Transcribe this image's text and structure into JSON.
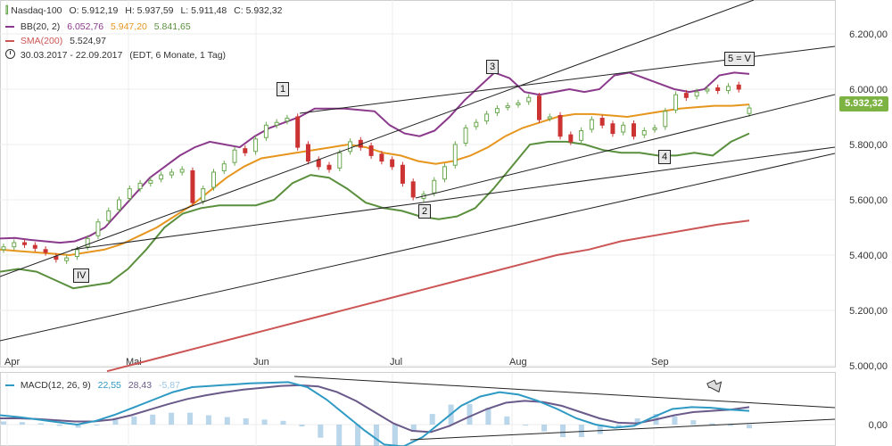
{
  "legend": {
    "nasdaq": {
      "name": "Nasdaq-100",
      "o": "O: 5.912,19",
      "h": "H: 5.937,59",
      "l": "L: 5.911,48",
      "c": "C: 5.932,32"
    },
    "bb": {
      "name": "BB(20, 2)",
      "upper": "6.052,76",
      "middle": "5.947,20",
      "lower": "5.841,65"
    },
    "sma": {
      "name": "SMA(200)",
      "value": "5.524,97"
    },
    "period": {
      "range": "30.03.2017 - 22.09.2017",
      "info": "(EDT, 6 Monate, 1 Tag)"
    },
    "macd": {
      "name": "MACD(12, 26, 9)",
      "macd": "22,55",
      "signal": "28,43",
      "hist": "-5,87"
    }
  },
  "price_badge": "5.932,32",
  "waves": [
    "1",
    "2",
    "3",
    "4",
    "5 = V",
    "IV"
  ],
  "colors": {
    "up": "#6aa84f",
    "down": "#cc3333",
    "bb_band": "#8b3a8b",
    "bb_mid": "#e6961e",
    "bb_low": "#5a8f3e",
    "sma": "#cc5555",
    "macd": "#2e9ac4",
    "signal": "#6a5a8a",
    "hist": "#9bc4e2",
    "badge": "#7cb342"
  },
  "chart_data": [
    {
      "type": "line",
      "title": "Nasdaq-100",
      "x_labels": [
        "Apr",
        "Mai",
        "Jun",
        "Jul",
        "Aug",
        "Sep"
      ],
      "y_ticks": [
        "6.200,00",
        "6.000,00",
        "5.800,00",
        "5.600,00",
        "5.400,00",
        "5.200,00",
        "5.000,00"
      ],
      "ylim": [
        5000,
        6250
      ],
      "grid": true,
      "series": [
        {
          "name": "Nasdaq-100",
          "style": "candles",
          "x": [
            "03.04",
            "05.04",
            "07.04",
            "10.04",
            "12.04",
            "17.04",
            "19.04",
            "21.04",
            "24.04",
            "26.04",
            "28.04",
            "01.05",
            "03.05",
            "05.05",
            "08.05",
            "10.05",
            "12.05",
            "15.05",
            "17.05",
            "19.05",
            "22.05",
            "24.05",
            "26.05",
            "30.05",
            "01.06",
            "05.06",
            "07.06",
            "09.06",
            "12.06",
            "14.06",
            "16.06",
            "19.06",
            "21.06",
            "23.06",
            "26.06",
            "28.06",
            "30.06",
            "03.07",
            "05.07",
            "07.07",
            "10.07",
            "12.07",
            "14.07",
            "17.07",
            "19.07",
            "21.07",
            "24.07",
            "26.07",
            "28.07",
            "31.07",
            "02.08",
            "04.08",
            "07.08",
            "09.08",
            "11.08",
            "14.08",
            "16.08",
            "18.08",
            "21.08",
            "23.08",
            "25.08",
            "28.08",
            "30.08",
            "01.09",
            "05.09",
            "07.09",
            "11.09",
            "13.09",
            "15.09",
            "18.09",
            "20.09",
            "22.09"
          ],
          "close": [
            5430,
            5445,
            5438,
            5425,
            5410,
            5385,
            5390,
            5420,
            5460,
            5520,
            5560,
            5600,
            5640,
            5660,
            5670,
            5690,
            5700,
            5710,
            5590,
            5640,
            5700,
            5730,
            5780,
            5770,
            5820,
            5870,
            5880,
            5895,
            5790,
            5740,
            5720,
            5710,
            5770,
            5810,
            5790,
            5760,
            5740,
            5720,
            5660,
            5610,
            5620,
            5670,
            5720,
            5800,
            5860,
            5880,
            5910,
            5930,
            5940,
            5950,
            5970,
            5890,
            5900,
            5830,
            5810,
            5850,
            5890,
            5870,
            5840,
            5870,
            5830,
            5850,
            5860,
            5920,
            5980,
            5970,
            5990,
            6000,
            5995,
            6010,
            6000,
            5932
          ],
          "open": [
            5420,
            5430,
            5445,
            5435,
            5420,
            5395,
            5380,
            5395,
            5430,
            5470,
            5525,
            5565,
            5605,
            5640,
            5660,
            5675,
            5690,
            5700,
            5705,
            5595,
            5645,
            5705,
            5735,
            5785,
            5775,
            5825,
            5870,
            5885,
            5900,
            5800,
            5745,
            5725,
            5715,
            5775,
            5815,
            5795,
            5765,
            5745,
            5725,
            5665,
            5605,
            5625,
            5675,
            5725,
            5805,
            5865,
            5885,
            5915,
            5935,
            5945,
            5955,
            5975,
            5895,
            5905,
            5835,
            5815,
            5855,
            5895,
            5875,
            5845,
            5875,
            5835,
            5855,
            5865,
            5925,
            5985,
            5975,
            5995,
            6005,
            5995,
            6015,
            5912
          ]
        },
        {
          "name": "BB(20, 2)",
          "role": "upper",
          "values": [
            5460,
            5462,
            5455,
            5450,
            5445,
            5450,
            5470,
            5500,
            5560,
            5620,
            5680,
            5720,
            5760,
            5790,
            5810,
            5800,
            5790,
            5830,
            5860,
            5880,
            5900,
            5930,
            5930,
            5930,
            5925,
            5920,
            5870,
            5840,
            5830,
            5850,
            5900,
            5960,
            6010,
            6060,
            6040,
            5990,
            5980,
            5990,
            6000,
            5990,
            6000,
            6050,
            6060,
            6040,
            6020,
            6000,
            5990,
            6000,
            6050,
            6060,
            6055
          ]
        },
        {
          "name": "BB(20, 2)",
          "role": "middle",
          "values": [
            5420,
            5415,
            5410,
            5405,
            5400,
            5410,
            5420,
            5440,
            5470,
            5500,
            5540,
            5580,
            5630,
            5680,
            5720,
            5750,
            5760,
            5770,
            5780,
            5790,
            5800,
            5790,
            5770,
            5760,
            5740,
            5730,
            5740,
            5760,
            5790,
            5830,
            5860,
            5880,
            5900,
            5910,
            5910,
            5905,
            5900,
            5910,
            5920,
            5930,
            5935,
            5940,
            5940,
            5945
          ]
        },
        {
          "name": "BB(20, 2)",
          "role": "lower",
          "values": [
            5340,
            5350,
            5340,
            5310,
            5280,
            5290,
            5300,
            5350,
            5420,
            5500,
            5550,
            5570,
            5580,
            5580,
            5580,
            5600,
            5660,
            5690,
            5680,
            5640,
            5590,
            5570,
            5560,
            5540,
            5530,
            5540,
            5570,
            5640,
            5720,
            5800,
            5810,
            5810,
            5800,
            5780,
            5770,
            5770,
            5760,
            5760,
            5770,
            5760,
            5810,
            5840
          ]
        },
        {
          "name": "SMA(200)",
          "values": [
            4980,
            5010,
            5040,
            5070,
            5100,
            5130,
            5160,
            5190,
            5220,
            5250,
            5280,
            5310,
            5340,
            5370,
            5400,
            5420,
            5450,
            5470,
            5490,
            5510,
            5525
          ]
        }
      ]
    },
    {
      "type": "line",
      "title": "MACD(12, 26, 9)",
      "y_ticks": [
        "0,00"
      ],
      "grid": true,
      "series": [
        {
          "name": "MACD",
          "values": [
            15,
            12,
            8,
            4,
            0,
            6,
            16,
            28,
            40,
            52,
            60,
            62,
            64,
            66,
            67,
            68,
            60,
            40,
            15,
            -10,
            -32,
            -35,
            -20,
            5,
            30,
            45,
            52,
            48,
            38,
            25,
            10,
            0,
            -5,
            -2,
            12,
            25,
            28,
            27,
            24,
            22
          ]
        },
        {
          "name": "Signal",
          "values": [
            10,
            10,
            9,
            7,
            5,
            5,
            8,
            15,
            24,
            33,
            41,
            47,
            52,
            56,
            59,
            62,
            63,
            61,
            52,
            38,
            20,
            2,
            -10,
            -12,
            -2,
            12,
            25,
            35,
            38,
            36,
            30,
            20,
            10,
            3,
            2,
            8,
            15,
            20,
            22,
            24,
            28
          ]
        },
        {
          "name": "Histogram",
          "values": [
            5,
            4,
            2,
            -2,
            -5,
            0,
            8,
            13,
            16,
            19,
            19,
            15,
            12,
            10,
            8,
            6,
            -3,
            -21,
            -37,
            -48,
            -52,
            -37,
            -10,
            17,
            32,
            33,
            27,
            13,
            0,
            -11,
            -20,
            -20,
            -15,
            -5,
            10,
            17,
            13,
            7,
            2,
            -2,
            -6
          ]
        }
      ]
    }
  ]
}
